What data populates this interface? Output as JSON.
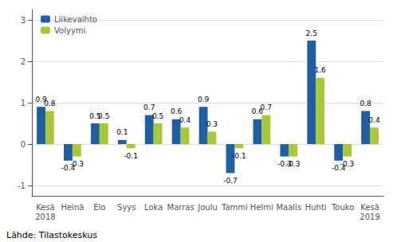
{
  "chart_data": {
    "type": "bar",
    "categories": [
      "Kesä\n2018",
      "Heinä",
      "Elo",
      "Syys",
      "Loka",
      "Marras",
      "Joulu",
      "Tammi",
      "Helmi",
      "Maalis",
      "Huhti",
      "Touko",
      "Kesä\n2019"
    ],
    "series": [
      {
        "name": "Liikevaihto",
        "color": "#1f5fa6",
        "values": [
          0.9,
          -0.4,
          0.5,
          0.1,
          0.7,
          0.6,
          0.9,
          -0.7,
          0.6,
          -0.3,
          2.5,
          -0.4,
          0.8
        ]
      },
      {
        "name": "Volyymi",
        "color": "#a8c837",
        "values": [
          0.8,
          -0.3,
          0.5,
          -0.1,
          0.5,
          0.4,
          0.3,
          -0.1,
          0.7,
          -0.3,
          1.6,
          -0.3,
          0.4
        ]
      }
    ],
    "ylim": [
      -1.25,
      3.25
    ],
    "yticks": [
      -1,
      0,
      1,
      2,
      3
    ],
    "grid": true,
    "legend": "upper left",
    "data_labels": true,
    "annotation": "Lähde: Tilastokeskus"
  }
}
